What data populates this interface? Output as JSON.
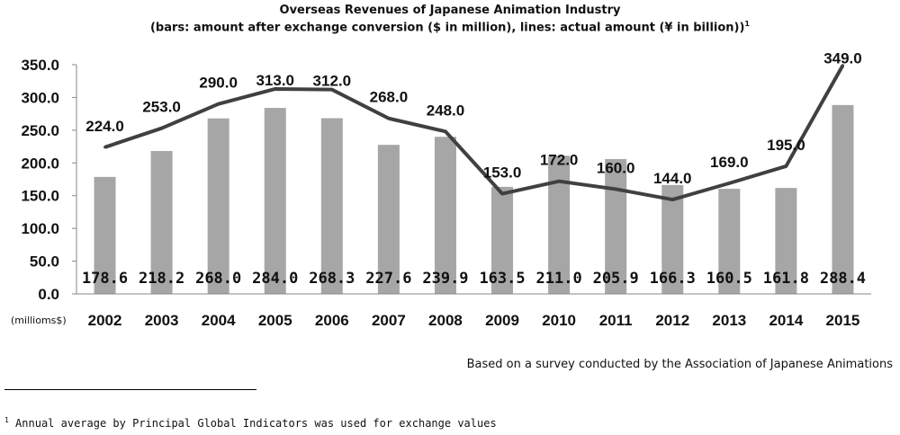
{
  "chart_data": {
    "type": "bar",
    "title": "Overseas Revenues of Japanese Animation Industry",
    "subtitle": "(bars: amount after exchange conversion ($ in million), lines: actual amount (¥ in billion))",
    "subtitle_footnote_mark": "1",
    "unit_label": "(millioms$)",
    "categories": [
      "2002",
      "2003",
      "2004",
      "2005",
      "2006",
      "2007",
      "2008",
      "2009",
      "2010",
      "2011",
      "2012",
      "2013",
      "2014",
      "2015"
    ],
    "y_ticks": [
      "0.0",
      "50.0",
      "100.0",
      "150.0",
      "200.0",
      "250.0",
      "300.0",
      "350.0"
    ],
    "ylim": [
      0,
      350
    ],
    "grid": false,
    "series": [
      {
        "type": "bar",
        "values": [
          178.6,
          218.2,
          268.0,
          284.0,
          268.3,
          227.6,
          239.9,
          163.5,
          211.0,
          205.9,
          166.3,
          160.5,
          161.8,
          288.4
        ],
        "labels": [
          "178.6",
          "218.2",
          "268.0",
          "284.0",
          "268.3",
          "227.6",
          "239.9",
          "163.5",
          "211.0",
          "205.9",
          "166.3",
          "160.5",
          "161.8",
          "288.4"
        ],
        "color": "#a6a6a6"
      },
      {
        "type": "line",
        "values": [
          224.0,
          253.0,
          290.0,
          313.0,
          312.0,
          268.0,
          248.0,
          153.0,
          172.0,
          160.0,
          144.0,
          169.0,
          195.0,
          349.0
        ],
        "labels": [
          "224.0",
          "253.0",
          "290.0",
          "313.0",
          "312.0",
          "268.0",
          "248.0",
          "153.0",
          "172.0",
          "160.0",
          "144.0",
          "169.0",
          "195.0",
          "349.0"
        ],
        "color": "#404040"
      }
    ]
  },
  "source": "Based on a survey conducted by the Association of Japanese Animations",
  "footnote": {
    "mark": "1",
    "text": " Annual average by Principal Global Indicators was used for exchange values"
  }
}
